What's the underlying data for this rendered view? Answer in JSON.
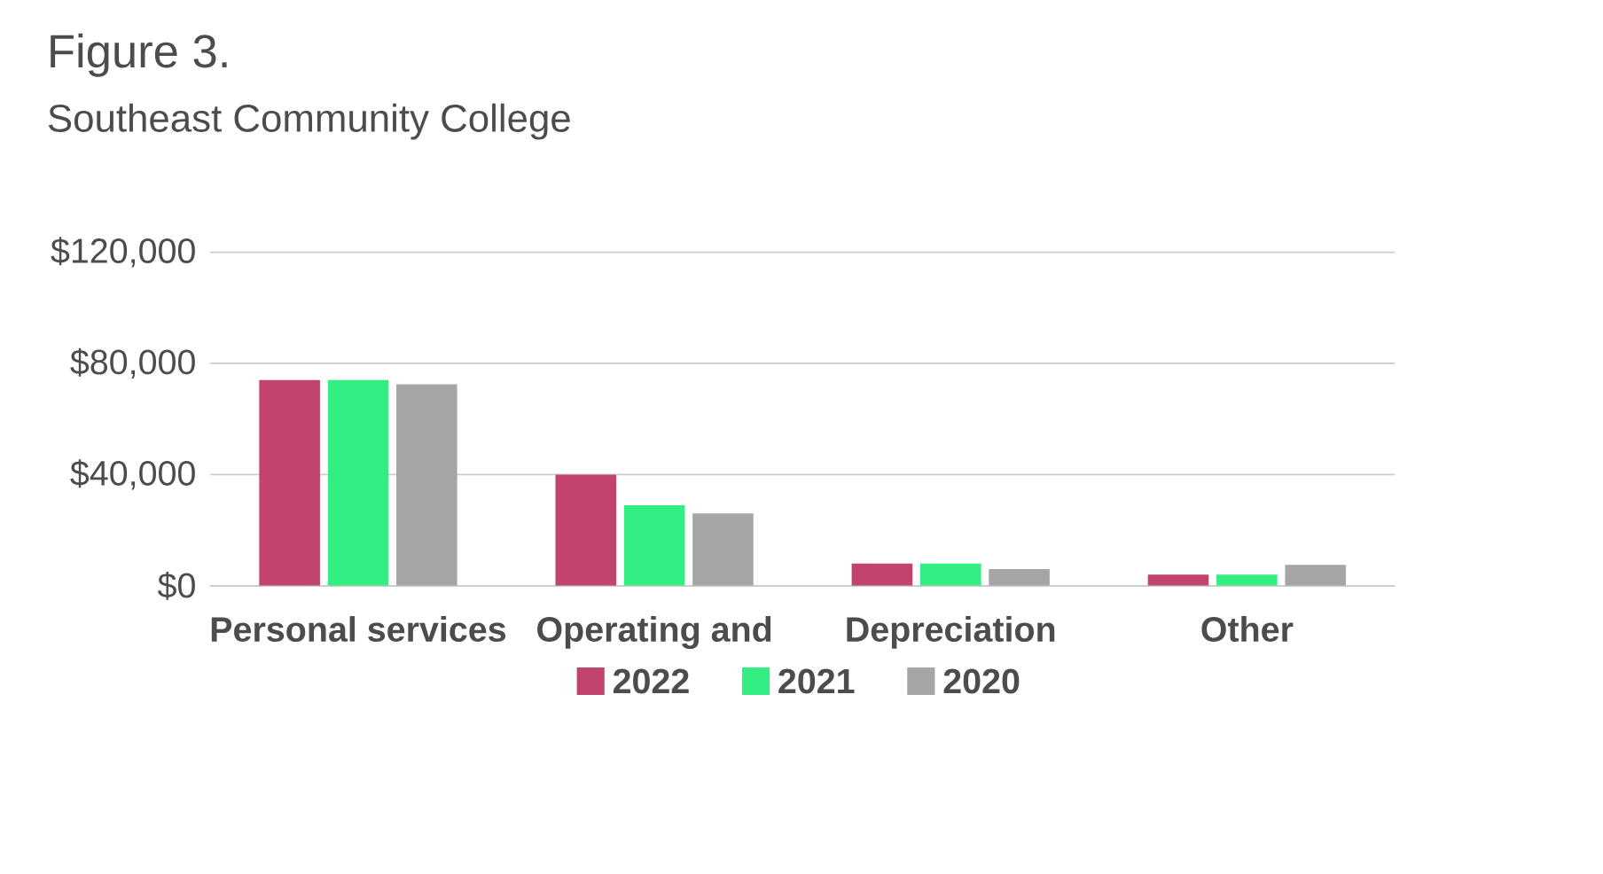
{
  "chart_data": {
    "type": "bar",
    "title": "Figure 3.",
    "subtitle": "Southeast Community College",
    "categories": [
      "Personal services",
      "Operating and",
      "Depreciation",
      "Other"
    ],
    "series": [
      {
        "name": "2022",
        "color": "#c0446c",
        "values": [
          74000,
          40000,
          8000,
          4000
        ]
      },
      {
        "name": "2021",
        "color": "#33ee80",
        "values": [
          74000,
          29000,
          8000,
          4000
        ]
      },
      {
        "name": "2020",
        "color": "#a5a5a5",
        "values": [
          72500,
          26000,
          6000,
          7500
        ]
      }
    ],
    "ylim": [
      0,
      120000
    ],
    "yticks": [
      {
        "value": 0,
        "label": "$0"
      },
      {
        "value": 40000,
        "label": "$40,000"
      },
      {
        "value": 80000,
        "label": "$80,000"
      },
      {
        "value": 120000,
        "label": "$120,000"
      }
    ],
    "grid": "y",
    "legend": "bottom"
  }
}
